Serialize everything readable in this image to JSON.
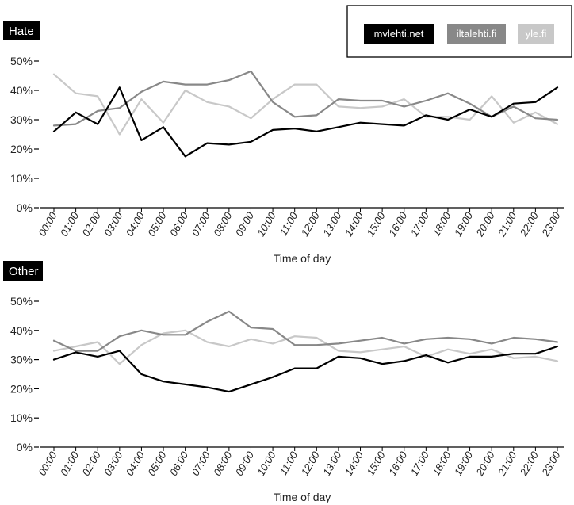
{
  "chart_data": [
    {
      "type": "line",
      "panel_label": "Hate",
      "xlabel": "Time of day",
      "ylabel": "",
      "ylim": [
        0,
        50
      ],
      "y_ticks": [
        "0%",
        "10%",
        "20%",
        "30%",
        "40%",
        "50%"
      ],
      "categories": [
        "00:00",
        "01:00",
        "02:00",
        "03:00",
        "04:00",
        "05:00",
        "06:00",
        "07:00",
        "08:00",
        "09:00",
        "10:00",
        "11:00",
        "12:00",
        "13:00",
        "14:00",
        "15:00",
        "16:00",
        "17:00",
        "18:00",
        "19:00",
        "20:00",
        "21:00",
        "22:00",
        "23:00"
      ],
      "series": [
        {
          "name": "mvlehti.net",
          "color": "#000000",
          "values": [
            26,
            32.5,
            28.5,
            41,
            23,
            27.5,
            17.5,
            22,
            21.5,
            22.5,
            26.5,
            27,
            26,
            27.5,
            29,
            28.5,
            28,
            31.5,
            30,
            33.5,
            31,
            35.5,
            36,
            41
          ]
        },
        {
          "name": "iltalehti.fi",
          "color": "#888888",
          "values": [
            28,
            28.5,
            33,
            34,
            39.5,
            43,
            42,
            42,
            43.5,
            46.5,
            36,
            31,
            31.5,
            37,
            36.5,
            36.5,
            34.5,
            36.5,
            39,
            35.5,
            31,
            34.5,
            30.5,
            30
          ]
        },
        {
          "name": "yle.fi",
          "color": "#c8c8c8",
          "values": [
            45.5,
            39,
            38,
            25,
            37,
            29,
            40,
            36,
            34.5,
            30.5,
            37,
            42,
            42,
            34.5,
            34,
            34.5,
            37,
            31,
            31,
            30,
            38,
            29,
            32.5,
            28.5
          ]
        }
      ]
    },
    {
      "type": "line",
      "panel_label": "Other",
      "xlabel": "Time of day",
      "ylabel": "",
      "ylim": [
        0,
        50
      ],
      "y_ticks": [
        "0%",
        "10%",
        "20%",
        "30%",
        "40%",
        "50%"
      ],
      "categories": [
        "00:00",
        "01:00",
        "02:00",
        "03:00",
        "04:00",
        "05:00",
        "06:00",
        "07:00",
        "08:00",
        "09:00",
        "10:00",
        "11:00",
        "12:00",
        "13:00",
        "14:00",
        "15:00",
        "16:00",
        "17:00",
        "18:00",
        "19:00",
        "20:00",
        "21:00",
        "22:00",
        "23:00"
      ],
      "series": [
        {
          "name": "mvlehti.net",
          "color": "#000000",
          "values": [
            30,
            32.5,
            31,
            33,
            25,
            22.5,
            21.5,
            20.5,
            19,
            21.5,
            24,
            27,
            27,
            31,
            30.5,
            28.5,
            29.5,
            31.5,
            29,
            31,
            31,
            32,
            32,
            34.5
          ]
        },
        {
          "name": "iltalehti.fi",
          "color": "#888888",
          "values": [
            36.5,
            33,
            33,
            38,
            40,
            38.5,
            38.5,
            43,
            46.5,
            41,
            40.5,
            35,
            35,
            35.5,
            36.5,
            37.5,
            35.5,
            37,
            37.5,
            37,
            35.5,
            37.5,
            37,
            36
          ]
        },
        {
          "name": "yle.fi",
          "color": "#c8c8c8",
          "values": [
            33,
            34.5,
            36,
            28.5,
            35,
            39,
            40,
            36,
            34.5,
            37,
            35.5,
            38,
            37.5,
            33,
            32.5,
            33.5,
            34.5,
            31,
            33.5,
            32,
            33.5,
            30.5,
            31,
            29.5
          ]
        }
      ]
    }
  ],
  "legend": {
    "placement": "top-right",
    "items": [
      {
        "label": "mvlehti.net",
        "bg": "#000000",
        "fg": "#ffffff"
      },
      {
        "label": "iltalehti.fi",
        "bg": "#888888",
        "fg": "#ffffff"
      },
      {
        "label": "yle.fi",
        "bg": "#c8c8c8",
        "fg": "#ffffff"
      }
    ]
  }
}
